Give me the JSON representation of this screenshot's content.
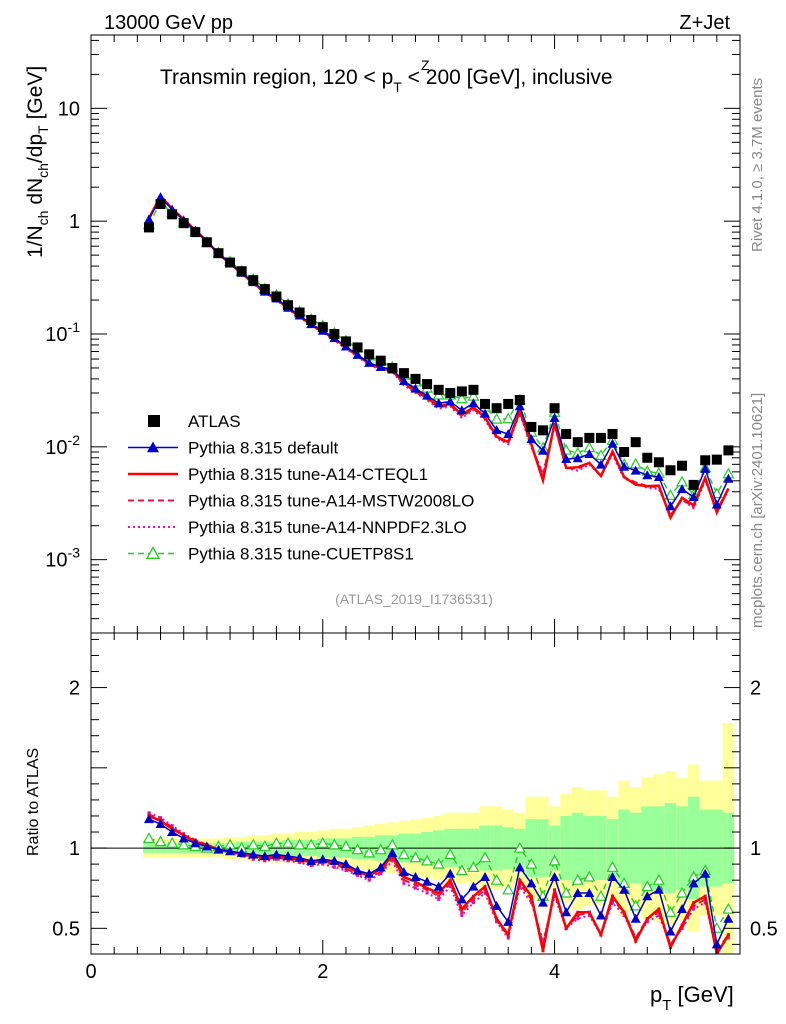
{
  "header": {
    "left": "13000 GeV pp",
    "right": "Z+Jet"
  },
  "title_text": "Transmin region, 120 < p",
  "title_sup": "Z",
  "title_sub": "T",
  "title_tail": " < 200 [GeV], inclusive",
  "side_label_top": "Rivet 4.1.0, ≥ 3.7M events",
  "side_label_bottom": "mcplots.cern.ch [arXiv:2401.10621]",
  "analysis_id": "(ATLAS_2019_I1736531)",
  "colors": {
    "data": "#000000",
    "default": "#0000cc",
    "cteql1": "#ff0000",
    "mstw": "#ee1144",
    "nnpdf": "#dd11cc",
    "cuetp8s1": "#22cc22",
    "band_inner": "#99ff99",
    "band_outer": "#ffff99"
  },
  "legend": [
    {
      "key": "data",
      "label": "ATLAS",
      "style": "square"
    },
    {
      "key": "default",
      "label": "Pythia 8.315 default",
      "style": "triangle"
    },
    {
      "key": "cteql1",
      "label": "Pythia 8.315 tune-A14-CTEQL1",
      "style": "solid"
    },
    {
      "key": "mstw",
      "label": "Pythia 8.315 tune-A14-MSTW2008LO",
      "style": "dashed"
    },
    {
      "key": "nnpdf",
      "label": "Pythia 8.315 tune-A14-NNPDF2.3LO",
      "style": "dotted"
    },
    {
      "key": "cuetp8s1",
      "label": "Pythia 8.315 tune-CUETP8S1",
      "style": "open-triangle"
    }
  ],
  "chart_data": {
    "type": "line",
    "xlabel": "p",
    "xlabel_sub": "T",
    "xlabel_unit": " [GeV]",
    "ylabel_parts": [
      "1/N",
      "ch",
      " dN",
      "ch",
      "/dp",
      "T",
      " [GeV]"
    ],
    "ratio_ylabel": "Ratio to ATLAS",
    "xlim": [
      0,
      5.6
    ],
    "ylim_log10": [
      -3.65,
      1.65
    ],
    "ratio_ylim": [
      0.34,
      2.34
    ],
    "x_ticks": [
      0,
      2,
      4
    ],
    "x_tick_labels": [
      "0",
      "2",
      "4"
    ],
    "y_ticks": [
      10,
      1,
      0.1,
      0.01,
      0.001
    ],
    "y_tick_labels": [
      "10",
      "1",
      "10^-1",
      "10^-2",
      "10^-3"
    ],
    "ratio_ticks": [
      0.5,
      1,
      2
    ],
    "ratio_tick_labels": [
      "0.5",
      "1",
      "2"
    ],
    "x": [
      0.5,
      0.6,
      0.7,
      0.8,
      0.9,
      1.0,
      1.1,
      1.2,
      1.3,
      1.4,
      1.5,
      1.6,
      1.7,
      1.8,
      1.9,
      2.0,
      2.1,
      2.2,
      2.3,
      2.4,
      2.5,
      2.6,
      2.7,
      2.8,
      2.9,
      3.0,
      3.1,
      3.2,
      3.3,
      3.4,
      3.5,
      3.6,
      3.7,
      3.8,
      3.9,
      4.0,
      4.1,
      4.2,
      4.3,
      4.4,
      4.5,
      4.6,
      4.7,
      4.8,
      4.9,
      5.0,
      5.1,
      5.2,
      5.3,
      5.4,
      5.5
    ],
    "data_values": [
      0.88,
      1.42,
      1.15,
      0.96,
      0.8,
      0.65,
      0.52,
      0.43,
      0.36,
      0.3,
      0.25,
      0.215,
      0.18,
      0.155,
      0.133,
      0.115,
      0.1,
      0.086,
      0.076,
      0.066,
      0.058,
      0.05,
      0.045,
      0.04,
      0.036,
      0.032,
      0.03,
      0.031,
      0.032,
      0.024,
      0.022,
      0.024,
      0.026,
      0.015,
      0.014,
      0.022,
      0.013,
      0.011,
      0.012,
      0.012,
      0.013,
      0.009,
      0.011,
      0.008,
      0.0073,
      0.0062,
      0.0068,
      0.0046,
      0.0076,
      0.0077,
      0.0093
    ],
    "series": [
      {
        "name": "Pythia 8.315 default",
        "key": "default",
        "ratio": [
          1.18,
          1.15,
          1.1,
          1.06,
          1.03,
          1.01,
          0.99,
          0.98,
          0.97,
          0.96,
          0.95,
          0.96,
          0.95,
          0.94,
          0.92,
          0.93,
          0.92,
          0.9,
          0.86,
          0.84,
          0.88,
          0.97,
          0.85,
          0.82,
          0.79,
          0.76,
          0.84,
          0.68,
          0.76,
          0.82,
          0.64,
          0.54,
          0.88,
          0.78,
          0.66,
          0.82,
          0.6,
          0.72,
          0.72,
          0.58,
          0.82,
          0.74,
          0.56,
          0.7,
          0.74,
          0.48,
          0.62,
          0.78,
          0.84,
          0.4,
          0.56
        ]
      },
      {
        "name": "Pythia 8.315 tune-A14-CTEQL1",
        "key": "cteql1",
        "ratio": [
          1.2,
          1.17,
          1.12,
          1.08,
          1.04,
          1.02,
          0.99,
          0.98,
          0.96,
          0.95,
          0.94,
          0.95,
          0.94,
          0.93,
          0.91,
          0.92,
          0.91,
          0.89,
          0.85,
          0.83,
          0.87,
          0.95,
          0.82,
          0.79,
          0.75,
          0.72,
          0.8,
          0.62,
          0.7,
          0.76,
          0.56,
          0.46,
          0.8,
          0.7,
          0.36,
          0.74,
          0.5,
          0.6,
          0.6,
          0.46,
          0.7,
          0.6,
          0.42,
          0.56,
          0.62,
          0.38,
          0.52,
          0.66,
          0.7,
          0.34,
          0.46
        ]
      },
      {
        "name": "Pythia 8.315 tune-A14-MSTW2008LO",
        "key": "mstw",
        "ratio": [
          1.21,
          1.18,
          1.13,
          1.08,
          1.05,
          1.02,
          0.99,
          0.97,
          0.96,
          0.94,
          0.93,
          0.94,
          0.93,
          0.92,
          0.9,
          0.91,
          0.9,
          0.87,
          0.84,
          0.82,
          0.85,
          0.94,
          0.8,
          0.77,
          0.74,
          0.7,
          0.78,
          0.6,
          0.68,
          0.74,
          0.55,
          0.45,
          0.78,
          0.68,
          0.4,
          0.72,
          0.5,
          0.58,
          0.6,
          0.46,
          0.68,
          0.6,
          0.44,
          0.56,
          0.6,
          0.4,
          0.5,
          0.64,
          0.68,
          0.36,
          0.46
        ]
      },
      {
        "name": "Pythia 8.315 tune-A14-NNPDF2.3LO",
        "key": "nnpdf",
        "ratio": [
          1.22,
          1.19,
          1.14,
          1.09,
          1.05,
          1.02,
          0.99,
          0.97,
          0.95,
          0.93,
          0.92,
          0.93,
          0.92,
          0.91,
          0.89,
          0.9,
          0.88,
          0.86,
          0.83,
          0.8,
          0.84,
          0.92,
          0.78,
          0.75,
          0.72,
          0.68,
          0.76,
          0.58,
          0.66,
          0.72,
          0.54,
          0.44,
          0.76,
          0.66,
          0.42,
          0.7,
          0.5,
          0.56,
          0.58,
          0.46,
          0.66,
          0.58,
          0.44,
          0.54,
          0.58,
          0.4,
          0.5,
          0.62,
          0.66,
          0.36,
          0.44
        ]
      },
      {
        "name": "Pythia 8.315 tune-CUETP8S1",
        "key": "cuetp8s1",
        "ratio": [
          1.06,
          1.04,
          1.03,
          1.02,
          1.01,
          1.0,
          1.01,
          1.02,
          1.0,
          1.02,
          1.01,
          1.03,
          1.03,
          1.02,
          1.02,
          1.03,
          1.02,
          1.01,
          0.99,
          0.97,
          0.99,
          1.02,
          0.96,
          0.94,
          0.92,
          0.9,
          0.96,
          0.86,
          0.88,
          0.94,
          0.8,
          0.74,
          1.0,
          0.9,
          0.7,
          0.92,
          0.72,
          0.8,
          0.82,
          0.7,
          0.88,
          0.78,
          0.64,
          0.76,
          0.8,
          0.6,
          0.72,
          0.82,
          0.86,
          0.5,
          0.62
        ]
      }
    ],
    "band_inner_halfwidth": [
      0.03,
      0.03,
      0.03,
      0.03,
      0.03,
      0.03,
      0.03,
      0.03,
      0.04,
      0.04,
      0.04,
      0.04,
      0.05,
      0.05,
      0.05,
      0.06,
      0.06,
      0.06,
      0.07,
      0.07,
      0.08,
      0.08,
      0.09,
      0.09,
      0.1,
      0.11,
      0.12,
      0.12,
      0.12,
      0.14,
      0.14,
      0.13,
      0.12,
      0.18,
      0.18,
      0.14,
      0.2,
      0.22,
      0.2,
      0.2,
      0.18,
      0.24,
      0.22,
      0.26,
      0.26,
      0.28,
      0.26,
      0.32,
      0.24,
      0.24,
      0.22
    ],
    "band_outer_halfwidth": [
      0.06,
      0.06,
      0.06,
      0.06,
      0.06,
      0.06,
      0.06,
      0.07,
      0.07,
      0.08,
      0.08,
      0.09,
      0.09,
      0.1,
      0.1,
      0.11,
      0.12,
      0.12,
      0.13,
      0.14,
      0.15,
      0.16,
      0.17,
      0.18,
      0.19,
      0.2,
      0.22,
      0.22,
      0.22,
      0.26,
      0.26,
      0.24,
      0.22,
      0.32,
      0.32,
      0.26,
      0.34,
      0.38,
      0.36,
      0.36,
      0.32,
      0.42,
      0.38,
      0.44,
      0.46,
      0.48,
      0.44,
      0.52,
      0.42,
      0.42,
      0.78
    ]
  }
}
